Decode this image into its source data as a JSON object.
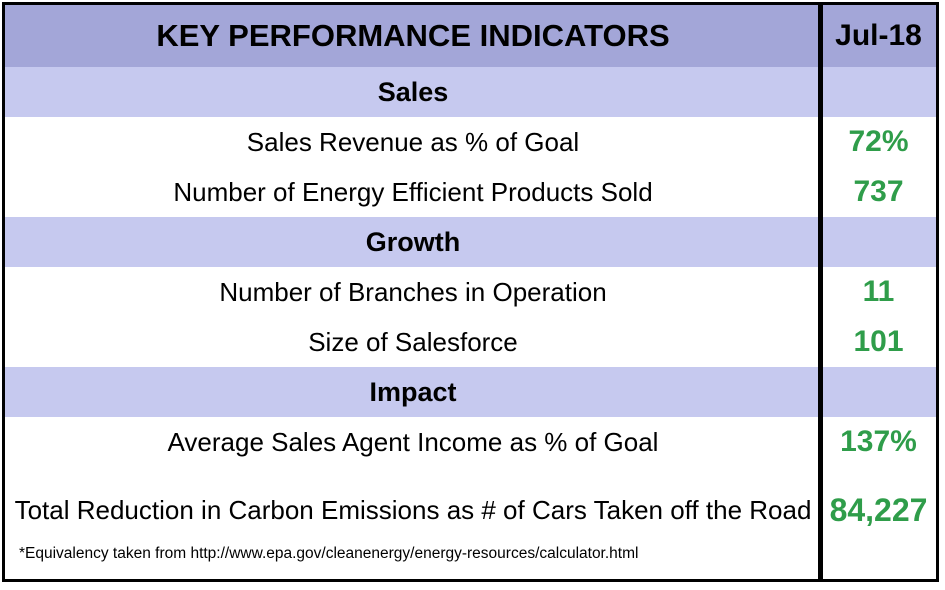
{
  "header": {
    "title": "KEY PERFORMANCE INDICATORS",
    "period": "Jul-18"
  },
  "sections": [
    {
      "name": "Sales",
      "items": [
        {
          "label": "Sales Revenue as % of Goal",
          "value": "72%"
        },
        {
          "label": "Number of Energy Efficient Products Sold",
          "value": "737"
        }
      ]
    },
    {
      "name": "Growth",
      "items": [
        {
          "label": "Number of Branches in Operation",
          "value": "11"
        },
        {
          "label": "Size of Salesforce",
          "value": "101"
        }
      ]
    },
    {
      "name": "Impact",
      "items": [
        {
          "label": "Average Sales Agent Income as % of Goal",
          "value": "137%"
        },
        {
          "label": "Total Reduction in Carbon Emissions  as # of Cars Taken off the Road",
          "value": "84,227"
        }
      ]
    }
  ],
  "footnote": "*Equivalency taken from http://www.epa.gov/cleanenergy/energy-resources/calculator.html",
  "colors": {
    "header_bg": "#a3a6d8",
    "section_bg": "#c6c9ef",
    "value_green": "#2f9d4a"
  }
}
